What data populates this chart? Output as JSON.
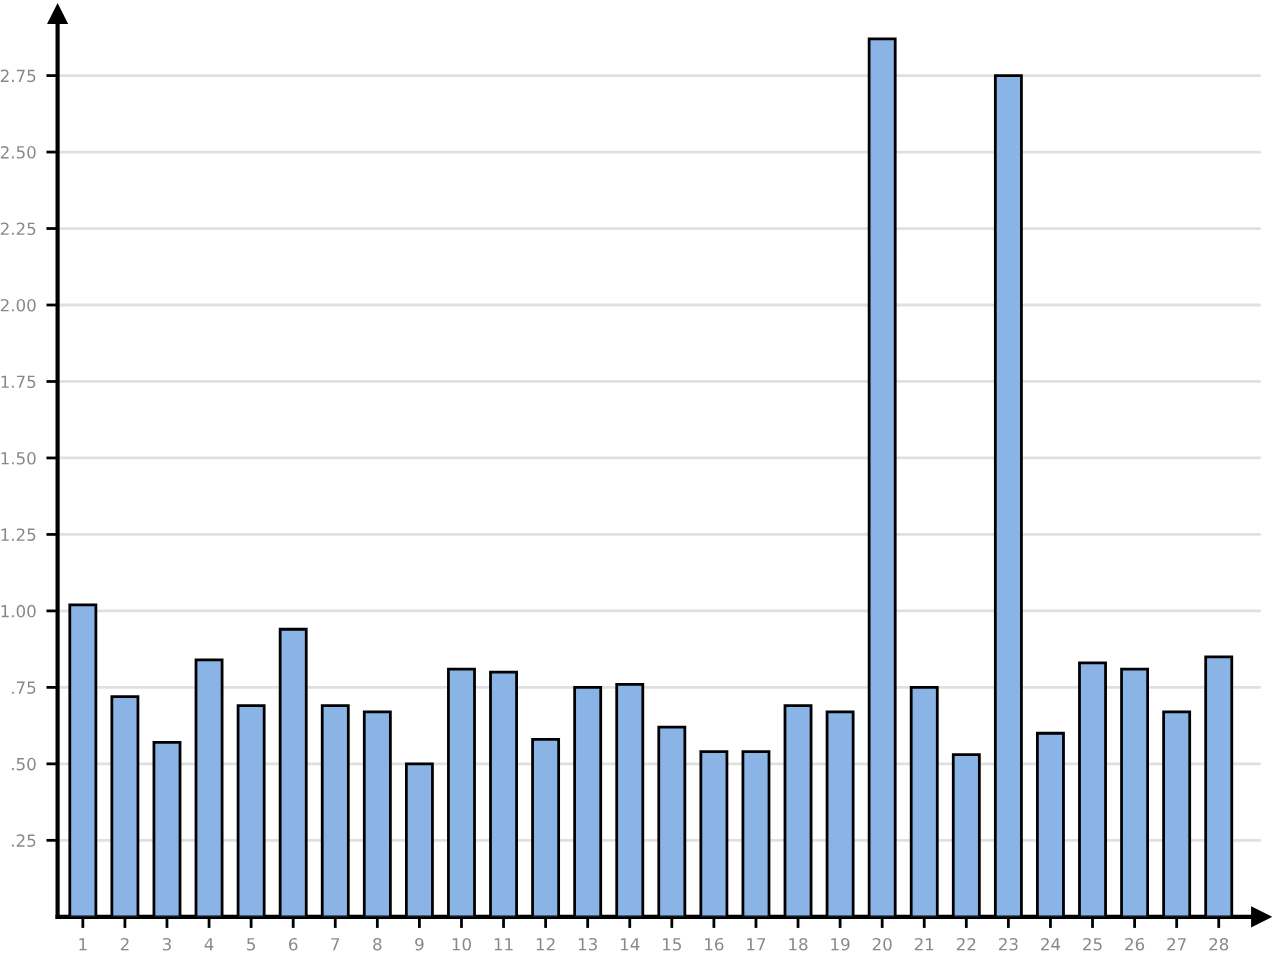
{
  "chart_data": {
    "type": "bar",
    "categories": [
      "1",
      "2",
      "3",
      "4",
      "5",
      "6",
      "7",
      "8",
      "9",
      "10",
      "11",
      "12",
      "13",
      "14",
      "15",
      "16",
      "17",
      "18",
      "19",
      "20",
      "21",
      "22",
      "23",
      "24",
      "25",
      "26",
      "27",
      "28"
    ],
    "values": [
      1.02,
      0.72,
      0.57,
      0.84,
      0.69,
      0.94,
      0.69,
      0.67,
      0.5,
      0.81,
      0.8,
      0.58,
      0.75,
      0.76,
      0.62,
      0.54,
      0.54,
      0.69,
      0.67,
      2.87,
      0.75,
      0.53,
      2.75,
      0.6,
      0.83,
      0.81,
      0.67,
      0.85
    ],
    "color": "#8ab4e6",
    "ylim": [
      0,
      2.95
    ],
    "yticks": [
      {
        "value": 0.25,
        "label": ".25"
      },
      {
        "value": 0.5,
        "label": ".50"
      },
      {
        "value": 0.75,
        "label": ".75"
      },
      {
        "value": 1,
        "label": "1.00"
      },
      1.25,
      {
        "value": 1.5,
        "label": "1.50"
      },
      1.75,
      {
        "value": 2,
        "label": "2.00"
      },
      2.25,
      {
        "value": 2.5,
        "label": "2.50"
      },
      2.75
    ],
    "grid": "y"
  }
}
